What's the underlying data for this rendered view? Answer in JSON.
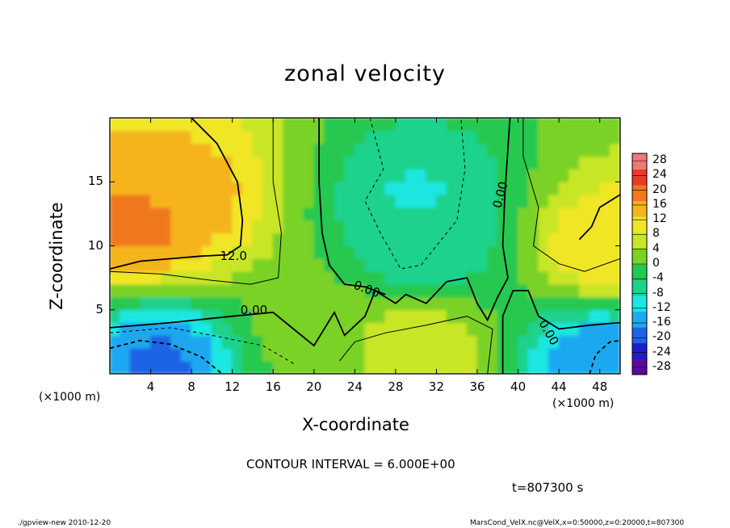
{
  "chart_data": {
    "type": "heatmap",
    "title": "zonal velocity",
    "xlabel": "X-coordinate",
    "ylabel": "Z-coordinate",
    "x_unit_label": "(×1000 m)",
    "xlim": [
      0,
      50
    ],
    "ylim": [
      0,
      20
    ],
    "x_ticks": [
      4,
      8,
      12,
      16,
      20,
      24,
      28,
      32,
      36,
      40,
      44,
      48
    ],
    "y_ticks": [
      5,
      10,
      15
    ],
    "colorbar": {
      "levels": [
        28,
        24,
        20,
        16,
        12,
        8,
        4,
        0,
        -4,
        -8,
        -12,
        -16,
        -20,
        -24,
        -28
      ],
      "range": [
        -30,
        30
      ],
      "placement": "right"
    },
    "contour_labels": [
      {
        "text": "12.0",
        "x": 10.8,
        "y": 9.2
      },
      {
        "text": "0.00",
        "x": 12.8,
        "y": 5.0
      },
      {
        "text": "0.00",
        "x": 23.8,
        "y": 7.0
      },
      {
        "text": "0.00",
        "x": 38.3,
        "y": 13.2
      },
      {
        "text": "0.00",
        "x": 42.0,
        "y": 4.3
      }
    ],
    "field_features": [
      {
        "x": 3,
        "z": 12,
        "value": 19
      },
      {
        "x": 6,
        "z": 14,
        "value": 16
      },
      {
        "x": 30,
        "z": 14,
        "value": -9
      },
      {
        "x": 31,
        "z": 10,
        "value": -8
      },
      {
        "x": 5,
        "z": 1,
        "value": -18
      },
      {
        "x": 48,
        "z": 1,
        "value": -16
      },
      {
        "x": 49,
        "z": 10,
        "value": 13
      },
      {
        "x": 30,
        "z": 2,
        "value": 8
      },
      {
        "x": 20,
        "z": 3,
        "value": 2
      }
    ]
  },
  "annotations": {
    "contour_interval": "CONTOUR INTERVAL = 6.000E+00",
    "time": "t=807300  s",
    "footer_left": "./gpview-new   2010-12-20",
    "footer_right": "MarsCond_VelX.nc@VelX,x=0:50000,z=0:20000,t=807300"
  },
  "colors": {
    "scale": [
      "#5a0a9e",
      "#1d1ec8",
      "#1e64e6",
      "#1ea8f0",
      "#1ee6e0",
      "#1ed28c",
      "#28c850",
      "#7ad228",
      "#c8e628",
      "#f0e628",
      "#f5b41e",
      "#f0781e",
      "#e63c28",
      "#f07878"
    ]
  }
}
